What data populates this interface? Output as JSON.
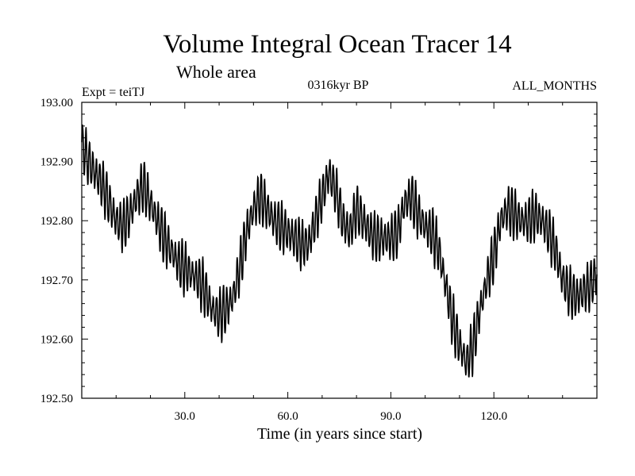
{
  "chart_data": {
    "type": "line",
    "title": "Volume Integral Ocean Tracer 14",
    "subtitle": "Whole area",
    "expt_label": "Expt = teiTJ",
    "period_label": "0316kyr BP",
    "months_label": "ALL_MONTHS",
    "xlabel": "Time (in years since start)",
    "ylabel": "",
    "xlim": [
      0,
      150
    ],
    "ylim": [
      192.5,
      193.0
    ],
    "x_ticks": [
      30,
      60,
      90,
      120
    ],
    "x_tick_labels": [
      "30.0",
      "60.0",
      "90.0",
      "120.0"
    ],
    "y_ticks": [
      192.5,
      192.6,
      192.7,
      192.8,
      192.9,
      193.0
    ],
    "y_tick_labels": [
      "192.50",
      "192.60",
      "192.70",
      "192.80",
      "192.90",
      "193.00"
    ],
    "series": [
      {
        "name": "Volume Integral Ocean Tracer 14",
        "color": "#000000",
        "seasonal_amplitude": 0.045,
        "x": [
          0,
          2,
          4,
          6,
          8,
          10,
          12,
          14,
          16,
          18,
          20,
          22,
          24,
          26,
          28,
          30,
          32,
          34,
          36,
          38,
          40,
          42,
          44,
          46,
          48,
          50,
          52,
          54,
          56,
          58,
          60,
          62,
          64,
          66,
          68,
          70,
          72,
          74,
          76,
          78,
          80,
          82,
          84,
          86,
          88,
          90,
          92,
          94,
          96,
          98,
          100,
          102,
          104,
          106,
          108,
          110,
          112,
          114,
          116,
          118,
          120,
          122,
          124,
          126,
          128,
          130,
          132,
          134,
          136,
          138,
          140,
          142,
          144,
          146,
          148,
          150
        ],
        "values": [
          192.93,
          192.9,
          192.88,
          192.86,
          192.83,
          192.8,
          192.79,
          192.81,
          192.84,
          192.86,
          192.83,
          192.8,
          192.77,
          192.75,
          192.73,
          192.72,
          192.71,
          192.7,
          192.68,
          192.65,
          192.64,
          192.65,
          192.67,
          192.72,
          192.78,
          192.82,
          192.84,
          192.82,
          192.8,
          192.79,
          192.78,
          192.77,
          192.76,
          192.76,
          192.8,
          192.84,
          192.88,
          192.85,
          192.8,
          192.78,
          192.82,
          192.8,
          192.78,
          192.77,
          192.77,
          192.77,
          192.78,
          192.83,
          192.84,
          192.81,
          192.79,
          192.78,
          192.75,
          192.69,
          192.63,
          192.59,
          192.56,
          192.59,
          192.65,
          192.7,
          192.74,
          192.8,
          192.82,
          192.81,
          192.8,
          192.8,
          192.81,
          192.8,
          192.78,
          192.75,
          192.7,
          192.68,
          192.67,
          192.68,
          192.69,
          192.71
        ]
      }
    ]
  }
}
